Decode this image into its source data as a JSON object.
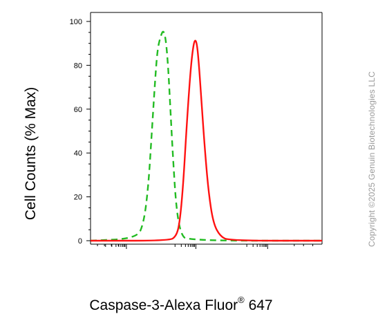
{
  "chart_data": {
    "type": "line",
    "title": "",
    "xlabel_main": "Caspase-3-Alexa Fluor",
    "xlabel_mark": "®",
    "xlabel_tail": " 647",
    "ylabel": "Cell Counts (% Max)",
    "xscale": "log",
    "ylim": [
      0,
      100
    ],
    "yticks": [
      0,
      20,
      40,
      60,
      80,
      100
    ],
    "grid": false,
    "legend": "none",
    "series": [
      {
        "color": "#22bb22",
        "style": "dashed",
        "points": [
          [
            0.0,
            0
          ],
          [
            0.2,
            1
          ],
          [
            0.23,
            8
          ],
          [
            0.25,
            25
          ],
          [
            0.265,
            50
          ],
          [
            0.28,
            75
          ],
          [
            0.29,
            88
          ],
          [
            0.305,
            94
          ],
          [
            0.315,
            96
          ],
          [
            0.325,
            92
          ],
          [
            0.335,
            80
          ],
          [
            0.345,
            60
          ],
          [
            0.355,
            40
          ],
          [
            0.37,
            15
          ],
          [
            0.39,
            3
          ],
          [
            0.42,
            0
          ],
          [
            1.0,
            0
          ]
        ]
      },
      {
        "color": "#ff1111",
        "style": "solid",
        "points": [
          [
            0.0,
            0
          ],
          [
            0.34,
            0
          ],
          [
            0.37,
            2
          ],
          [
            0.385,
            8
          ],
          [
            0.4,
            25
          ],
          [
            0.415,
            52
          ],
          [
            0.43,
            75
          ],
          [
            0.44,
            86
          ],
          [
            0.45,
            92
          ],
          [
            0.46,
            90
          ],
          [
            0.47,
            78
          ],
          [
            0.48,
            62
          ],
          [
            0.495,
            40
          ],
          [
            0.51,
            22
          ],
          [
            0.53,
            8
          ],
          [
            0.56,
            2
          ],
          [
            0.6,
            0
          ],
          [
            1.0,
            0
          ]
        ]
      }
    ]
  },
  "copyright": "Copyright ©2025 Genuin Biotechnologies LLC"
}
